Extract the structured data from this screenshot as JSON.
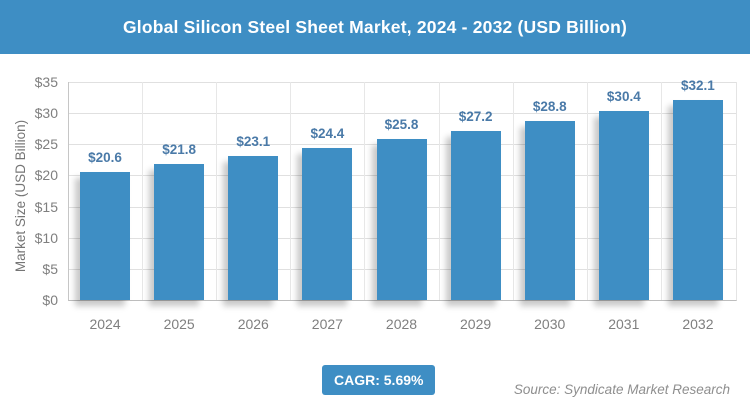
{
  "title": "Global Silicon Steel Sheet Market, 2024 - 2032 (USD Billion)",
  "colors": {
    "header_bg": "#3e8ec4",
    "bar": "#3e8ec4",
    "badge_bg": "#3e8ec4",
    "value_label": "#4a7aa8",
    "axis_text": "#7f7f7f",
    "grid": "#e0e0e0"
  },
  "chart_data": {
    "type": "bar",
    "title": "Global Silicon Steel Sheet Market, 2024 - 2032 (USD Billion)",
    "categories": [
      "2024",
      "2025",
      "2026",
      "2027",
      "2028",
      "2029",
      "2030",
      "2031",
      "2032"
    ],
    "values": [
      20.6,
      21.8,
      23.1,
      24.4,
      25.8,
      27.2,
      28.8,
      30.4,
      32.1
    ],
    "value_labels": [
      "$20.6",
      "$21.8",
      "$23.1",
      "$24.4",
      "$25.8",
      "$27.2",
      "$28.8",
      "$30.4",
      "$32.1"
    ],
    "xlabel": "",
    "ylabel": "Market Size (USD Billion)",
    "ylim": [
      0,
      35
    ],
    "ytick_step": 5,
    "ytick_prefix": "$",
    "ytick_labels": [
      "$0",
      "$5",
      "$10",
      "$15",
      "$20",
      "$25",
      "$30",
      "$35"
    ],
    "grid": true,
    "legend": false
  },
  "footer": {
    "cagr_label": "CAGR: 5.69%",
    "source": "Source: Syndicate Market Research"
  }
}
